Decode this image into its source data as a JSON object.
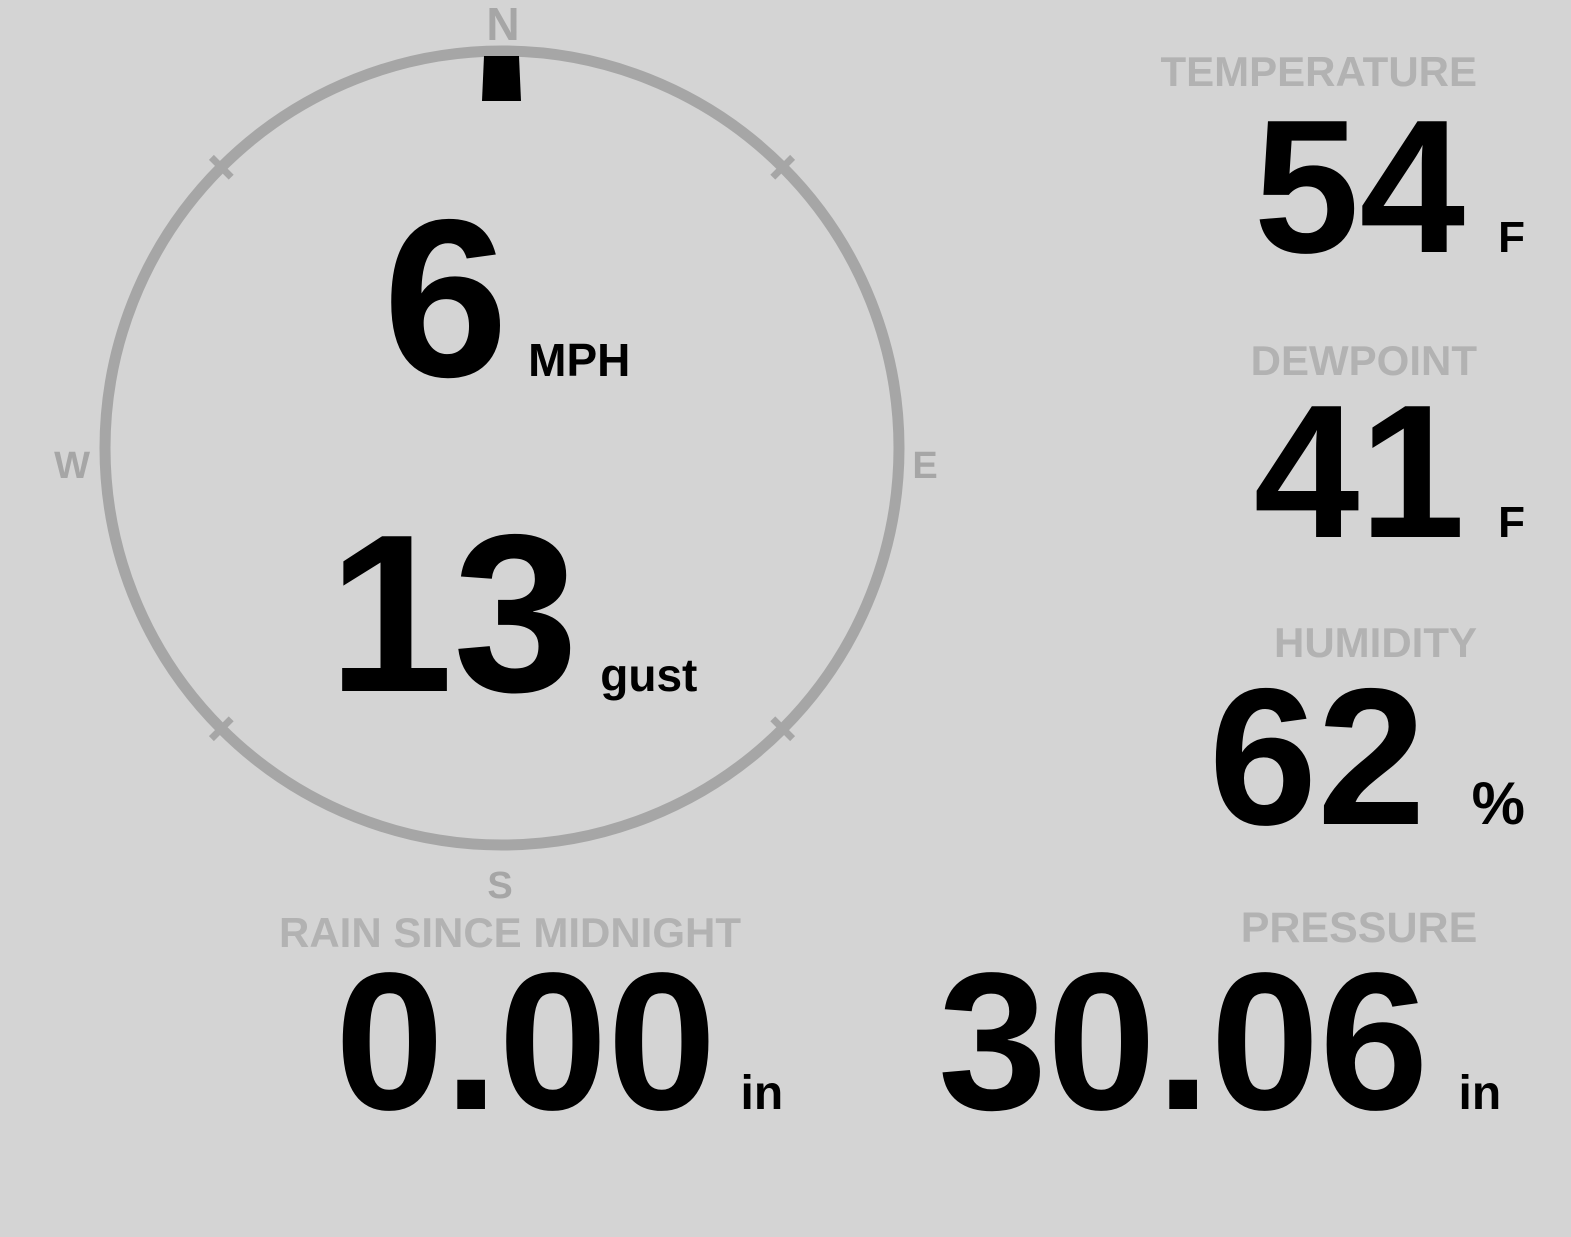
{
  "colors": {
    "background": "#d4d4d4",
    "compass": "#a6a6a6",
    "label": "#b2b2b2",
    "value": "#000000"
  },
  "wind": {
    "speed": "6",
    "speed_unit": "MPH",
    "gust": "13",
    "gust_unit": "gust",
    "direction_degrees": 0,
    "compass": {
      "north": "N",
      "east": "E",
      "south": "S",
      "west": "W"
    }
  },
  "metrics": {
    "temperature": {
      "label": "TEMPERATURE",
      "value": "54",
      "unit": "F"
    },
    "dewpoint": {
      "label": "DEWPOINT",
      "value": "41",
      "unit": "F"
    },
    "humidity": {
      "label": "HUMIDITY",
      "value": "62",
      "unit": "%"
    },
    "rain": {
      "label": "RAIN SINCE MIDNIGHT",
      "value": "0.00",
      "unit": "in"
    },
    "pressure": {
      "label": "PRESSURE",
      "value": "30.06",
      "unit": "in"
    }
  }
}
